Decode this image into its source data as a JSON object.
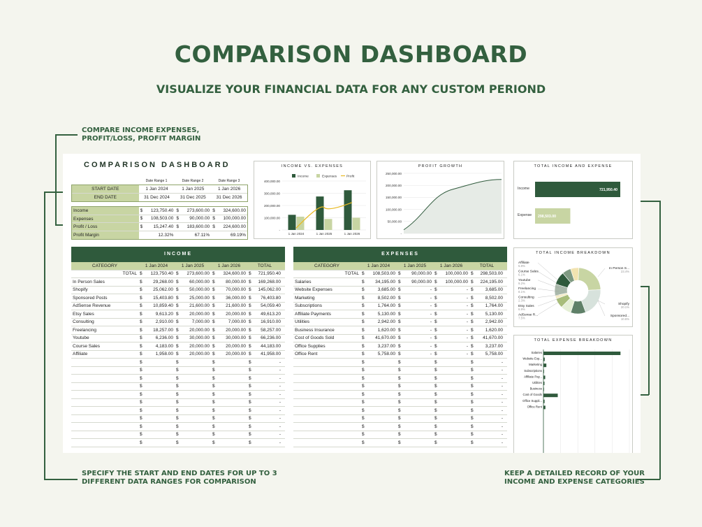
{
  "hero": {
    "title": "COMPARISON DASHBOARD",
    "subtitle": "VISUALIZE YOUR FINANCIAL DATA FOR ANY CUSTOM PERIOND"
  },
  "callouts": {
    "top_left": "COMPARE INCOME EXPENSES,\nPROFIT/LOSS, PROFIT MARGIN",
    "bottom_left": "SPECIFY THE START AND END DATES FOR UP TO 3\nDIFFERENT DATA RANGES FOR COMPARISON",
    "bottom_right": "KEEP A DETAILED RECORD OF YOUR\nINCOME AND EXPENSE CATEGORIES"
  },
  "dashboard": {
    "title": "COMPARISON DASHBOARD",
    "ranges": {
      "headers": [
        "Date Range 1",
        "Date Range 2",
        "Date Range 3"
      ],
      "rows": [
        {
          "label": "START DATE",
          "values": [
            "1 Jan 2024",
            "1 Jan 2025",
            "1 Jan 2026"
          ]
        },
        {
          "label": "END DATE",
          "values": [
            "31 Dec 2024",
            "31 Dec 2025",
            "31 Dec 2026"
          ]
        }
      ]
    },
    "summary": [
      {
        "label": "Income",
        "values": [
          "123,750.40",
          "273,600.00",
          "324,600.00"
        ]
      },
      {
        "label": "Expenses",
        "values": [
          "108,503.00",
          "90,000.00",
          "100,000.00"
        ]
      },
      {
        "label": "Profit / Loss",
        "values": [
          "15,247.40",
          "183,600.00",
          "224,600.00"
        ]
      },
      {
        "label": "Profit Margin",
        "values": [
          "12.32%",
          "67.11%",
          "69.19%"
        ]
      }
    ],
    "currency": "$",
    "income": {
      "title": "INCOME",
      "headers": [
        "CATEGORY",
        "1 Jan 2024",
        "1 Jan 2025",
        "1 Jan 2026",
        "TOTAL"
      ],
      "total": {
        "label": "TOTAL",
        "values": [
          "123,750.40",
          "273,600.00",
          "324,600.00",
          "721,950.40"
        ]
      },
      "rows": [
        {
          "label": "In Person Sales",
          "values": [
            "29,268.00",
            "60,000.00",
            "80,000.00",
            "169,268.00"
          ]
        },
        {
          "label": "Shopify",
          "values": [
            "25,062.00",
            "50,000.00",
            "70,000.00",
            "145,062.00"
          ]
        },
        {
          "label": "Sponsored Posts",
          "values": [
            "15,403.80",
            "25,000.00",
            "36,000.00",
            "76,403.80"
          ]
        },
        {
          "label": "AdSense Revenue",
          "values": [
            "10,859.40",
            "21,600.00",
            "21,600.00",
            "54,059.40"
          ]
        },
        {
          "label": "Etsy Sales",
          "values": [
            "9,613.20",
            "20,000.00",
            "20,000.00",
            "49,613.20"
          ]
        },
        {
          "label": "Consulting",
          "values": [
            "2,910.00",
            "7,000.00",
            "7,000.00",
            "16,910.00"
          ]
        },
        {
          "label": "Freelancing",
          "values": [
            "18,257.00",
            "20,000.00",
            "20,000.00",
            "58,257.00"
          ]
        },
        {
          "label": "Youtube",
          "values": [
            "6,236.00",
            "30,000.00",
            "30,000.00",
            "66,236.00"
          ]
        },
        {
          "label": "Course Sales",
          "values": [
            "4,183.00",
            "20,000.00",
            "20,000.00",
            "44,183.00"
          ]
        },
        {
          "label": "Affiliate",
          "values": [
            "1,958.00",
            "20,000.00",
            "20,000.00",
            "41,958.00"
          ]
        }
      ]
    },
    "expenses": {
      "title": "EXPENSES",
      "headers": [
        "CATEGORY",
        "1 Jan 2024",
        "1 Jan 2025",
        "1 Jan 2026",
        "TOTAL"
      ],
      "total": {
        "label": "TOTAL",
        "values": [
          "108,503.00",
          "90,000.00",
          "100,000.00",
          "298,503.00"
        ]
      },
      "rows": [
        {
          "label": "Salaries",
          "values": [
            "34,195.00",
            "90,000.00",
            "100,000.00",
            "224,195.00"
          ]
        },
        {
          "label": "Website Expenses",
          "values": [
            "3,685.00",
            "-",
            "-",
            "3,685.00"
          ]
        },
        {
          "label": "Marketing",
          "values": [
            "8,502.00",
            "-",
            "-",
            "8,502.00"
          ]
        },
        {
          "label": "Subscriptions",
          "values": [
            "1,764.00",
            "-",
            "-",
            "1,764.00"
          ]
        },
        {
          "label": "Affiliate Payments",
          "values": [
            "5,130.00",
            "-",
            "-",
            "5,130.00"
          ]
        },
        {
          "label": "Utilities",
          "values": [
            "2,942.00",
            "-",
            "-",
            "2,942.00"
          ]
        },
        {
          "label": "Business Insurance",
          "values": [
            "1,620.00",
            "-",
            "-",
            "1,620.00"
          ]
        },
        {
          "label": "Cost of Goods Sold",
          "values": [
            "41,670.00",
            "-",
            "-",
            "41,670.00"
          ]
        },
        {
          "label": "Office Supplies",
          "values": [
            "3,237.00",
            "-",
            "-",
            "3,237.00"
          ]
        },
        {
          "label": "Office Rent",
          "values": [
            "5,758.00",
            "-",
            "-",
            "5,758.00"
          ]
        }
      ]
    },
    "dash": "-"
  },
  "colors": {
    "dark_green": "#2f5a3c",
    "light_green": "#c8d5a3",
    "accent_yellow": "#e8b923",
    "text_green": "#33603f"
  },
  "chart_data": [
    {
      "type": "bar",
      "title": "INCOME VS. EXPENSES",
      "categories": [
        "1 Jan 2024",
        "1 Jan 2025",
        "1 Jan 2026"
      ],
      "series": [
        {
          "name": "Income",
          "values": [
            123750.4,
            273600.0,
            324600.0
          ],
          "color": "#2f5a3c"
        },
        {
          "name": "Expenses",
          "values": [
            108503.0,
            90000.0,
            100000.0
          ],
          "color": "#c8d5a3"
        },
        {
          "name": "Profit",
          "values": [
            15247.4,
            183600.0,
            224600.0
          ],
          "color": "#e8b923",
          "kind": "line"
        }
      ],
      "ylim": [
        0,
        400000
      ],
      "yticks": [
        "-",
        "100,000.00",
        "200,000.00",
        "300,000.00",
        "400,000.00"
      ]
    },
    {
      "type": "area",
      "title": "PROFIT GROWTH",
      "x": [
        "1 Jan 2024",
        "1 Jan 2025",
        "1 Jan 2026"
      ],
      "values": [
        15247.4,
        183600.0,
        224600.0
      ],
      "ylim": [
        0,
        250000
      ],
      "yticks": [
        "-",
        "50,000.00",
        "100,000.00",
        "150,000.00",
        "200,000.00",
        "250,000.00"
      ]
    },
    {
      "type": "bar",
      "title": "TOTAL INCOME AND EXPENSE",
      "categories": [
        "Income",
        "Expense"
      ],
      "values": [
        721950.4,
        298503.0
      ],
      "labels": [
        "721,950.40",
        "298,503.00"
      ]
    },
    {
      "type": "pie",
      "title": "TOTAL INCOME BREAKDOWN",
      "slices": [
        {
          "name": "In Person S...",
          "pct": "23.4%",
          "value": 169268.0,
          "color": "#c8d5a3"
        },
        {
          "name": "Shopify",
          "pct": "20.1%",
          "value": 145062.0,
          "color": "#d7e2dc"
        },
        {
          "name": "Sponsored...",
          "pct": "10.6%",
          "value": 76403.8,
          "color": "#5f8068"
        },
        {
          "name": "AdSense R...",
          "pct": "7.5%",
          "value": 54059.4,
          "color": "#e5efd5"
        },
        {
          "name": "Etsy Sales",
          "pct": "6.9%",
          "value": 49613.2,
          "color": "#a8bd7a"
        },
        {
          "name": "Consulting",
          "pct": "2.3%",
          "value": 16910.0,
          "color": "#f4ecc8"
        },
        {
          "name": "Freelancing",
          "pct": "8.1%",
          "value": 58257.0,
          "color": "#a9b8aa"
        },
        {
          "name": "Youtube",
          "pct": "9.2%",
          "value": 66236.0,
          "color": "#2f5a3c"
        },
        {
          "name": "Course Sales",
          "pct": "6.1%",
          "value": 44183.0,
          "color": "#7f9a82"
        },
        {
          "name": "Affiliate",
          "pct": "5.8%",
          "value": 41958.0,
          "color": "#f2e3b0"
        }
      ]
    },
    {
      "type": "bar",
      "title": "TOTAL EXPENSE BREAKDOWN",
      "orientation": "horizontal",
      "categories": [
        "Salaries",
        "Website Exp...",
        "Marketing",
        "Subscriptions",
        "Affiliate Pay...",
        "Utilities",
        "Business",
        "Cost of Goods",
        "Office Suppli...",
        "Office Rent"
      ],
      "values": [
        224195.0,
        3685.0,
        8502.0,
        1764.0,
        5130.0,
        2942.0,
        1620.0,
        41670.0,
        3237.0,
        5758.0
      ],
      "xlim": [
        0,
        250000
      ]
    }
  ]
}
